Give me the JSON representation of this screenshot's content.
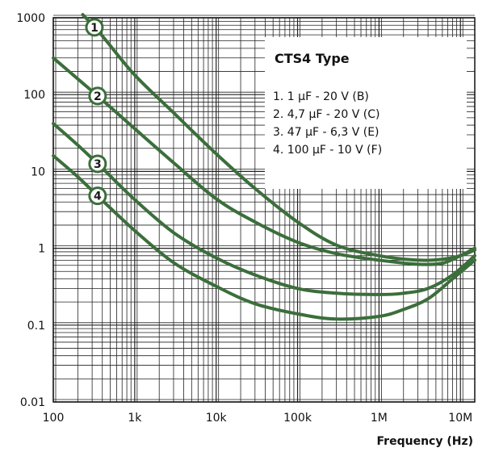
{
  "chart_data": {
    "type": "line",
    "title": "",
    "xlabel": "Frequency (Hz)",
    "ylabel": "",
    "x_scale": "log",
    "y_scale": "log",
    "xlim": [
      100,
      15000000
    ],
    "ylim": [
      0.01,
      1000
    ],
    "x_ticks": [
      {
        "value": 100,
        "label": "100"
      },
      {
        "value": 1000,
        "label": "1k"
      },
      {
        "value": 10000,
        "label": "10k"
      },
      {
        "value": 100000,
        "label": "100k"
      },
      {
        "value": 1000000,
        "label": "1M"
      },
      {
        "value": 10000000,
        "label": "10M"
      }
    ],
    "y_ticks": [
      {
        "value": 0.01,
        "label": "0.01"
      },
      {
        "value": 0.1,
        "label": "0.1"
      },
      {
        "value": 1,
        "label": "1"
      },
      {
        "value": 10,
        "label": "10"
      },
      {
        "value": 100,
        "label": "100"
      },
      {
        "value": 1000,
        "label": "1000"
      }
    ],
    "grid": true,
    "line_color": "#3b6e3b",
    "legend": {
      "placement": "top-right",
      "title": "CTS4 Type",
      "items": [
        "1.    1 µF - 20 V (B)",
        "2.  4,7 µF - 20 V (C)",
        "3.  47 µF - 6,3 V (E)",
        "4. 100 µF - 10 V (F)"
      ]
    },
    "series": [
      {
        "marker": "1",
        "marker_at": 320,
        "points": [
          [
            230,
            1100
          ],
          [
            400,
            580
          ],
          [
            1000,
            180
          ],
          [
            3000,
            58
          ],
          [
            10000,
            17
          ],
          [
            30000,
            6
          ],
          [
            100000,
            2.2
          ],
          [
            300000,
            1.1
          ],
          [
            1000000,
            0.8
          ],
          [
            3000000,
            0.7
          ],
          [
            6000000,
            0.72
          ],
          [
            10000000,
            0.8
          ],
          [
            15000000,
            0.95
          ]
        ]
      },
      {
        "marker": "2",
        "marker_at": 350,
        "points": [
          [
            100,
            300
          ],
          [
            200,
            160
          ],
          [
            400,
            85
          ],
          [
            1000,
            36
          ],
          [
            3000,
            13
          ],
          [
            10000,
            4.4
          ],
          [
            30000,
            2.2
          ],
          [
            100000,
            1.2
          ],
          [
            300000,
            0.85
          ],
          [
            1000000,
            0.7
          ],
          [
            3000000,
            0.62
          ],
          [
            6000000,
            0.64
          ],
          [
            10000000,
            0.8
          ],
          [
            15000000,
            1.0
          ]
        ]
      },
      {
        "marker": "3",
        "marker_at": 350,
        "points": [
          [
            100,
            42
          ],
          [
            200,
            22
          ],
          [
            400,
            11
          ],
          [
            1000,
            4.3
          ],
          [
            3000,
            1.6
          ],
          [
            10000,
            0.75
          ],
          [
            30000,
            0.45
          ],
          [
            100000,
            0.3
          ],
          [
            300000,
            0.26
          ],
          [
            1000000,
            0.25
          ],
          [
            2000000,
            0.26
          ],
          [
            4000000,
            0.3
          ],
          [
            8000000,
            0.45
          ],
          [
            15000000,
            0.8
          ]
        ]
      },
      {
        "marker": "4",
        "marker_at": 350,
        "points": [
          [
            100,
            16
          ],
          [
            200,
            8.5
          ],
          [
            400,
            4.2
          ],
          [
            1000,
            1.7
          ],
          [
            3000,
            0.65
          ],
          [
            10000,
            0.32
          ],
          [
            30000,
            0.19
          ],
          [
            100000,
            0.14
          ],
          [
            300000,
            0.12
          ],
          [
            1000000,
            0.13
          ],
          [
            2000000,
            0.16
          ],
          [
            4000000,
            0.22
          ],
          [
            8000000,
            0.4
          ],
          [
            15000000,
            0.7
          ]
        ]
      }
    ]
  }
}
